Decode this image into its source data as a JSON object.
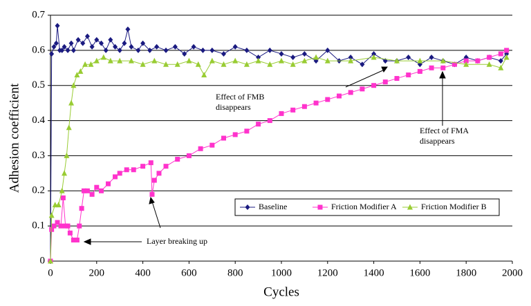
{
  "chart_data": {
    "type": "line",
    "xlabel": "Cycles",
    "ylabel": "Adhesion coefficient",
    "xlim": [
      0,
      2000
    ],
    "xticks": [
      0,
      200,
      400,
      600,
      800,
      1000,
      1200,
      1400,
      1600,
      1800,
      2000
    ],
    "ylim": [
      0,
      0.7
    ],
    "yticks": [
      0,
      0.1,
      0.2,
      0.3,
      0.4,
      0.5,
      0.6,
      0.7
    ],
    "grid": true,
    "legend": "lower right",
    "series": [
      {
        "name": "Baseline",
        "color": "#1a1a80",
        "marker": "diamond",
        "x": [
          0,
          5,
          15,
          25,
          30,
          40,
          50,
          60,
          75,
          90,
          100,
          120,
          140,
          160,
          180,
          200,
          220,
          240,
          260,
          280,
          300,
          320,
          335,
          350,
          380,
          400,
          430,
          460,
          500,
          540,
          580,
          620,
          660,
          700,
          750,
          800,
          850,
          900,
          950,
          1000,
          1050,
          1100,
          1150,
          1200,
          1250,
          1300,
          1350,
          1400,
          1450,
          1500,
          1550,
          1600,
          1650,
          1700,
          1750,
          1800,
          1850,
          1900,
          1950,
          1975
        ],
        "values": [
          0,
          0.59,
          0.61,
          0.62,
          0.67,
          0.6,
          0.6,
          0.61,
          0.6,
          0.62,
          0.6,
          0.63,
          0.62,
          0.64,
          0.61,
          0.63,
          0.62,
          0.6,
          0.63,
          0.61,
          0.6,
          0.62,
          0.66,
          0.61,
          0.6,
          0.62,
          0.6,
          0.61,
          0.6,
          0.61,
          0.59,
          0.61,
          0.6,
          0.6,
          0.59,
          0.61,
          0.6,
          0.58,
          0.6,
          0.59,
          0.58,
          0.59,
          0.57,
          0.6,
          0.57,
          0.58,
          0.56,
          0.59,
          0.57,
          0.57,
          0.58,
          0.56,
          0.58,
          0.57,
          0.56,
          0.58,
          0.57,
          0.58,
          0.57,
          0.59
        ]
      },
      {
        "name": "Friction Modifier A",
        "color": "#ff33cc",
        "marker": "square",
        "x": [
          0,
          5,
          15,
          30,
          45,
          55,
          65,
          75,
          85,
          100,
          115,
          125,
          135,
          145,
          160,
          180,
          200,
          220,
          250,
          280,
          300,
          330,
          360,
          400,
          435,
          440,
          450,
          470,
          500,
          550,
          600,
          650,
          700,
          750,
          800,
          850,
          900,
          950,
          1000,
          1050,
          1100,
          1150,
          1200,
          1250,
          1300,
          1350,
          1400,
          1450,
          1500,
          1550,
          1600,
          1650,
          1700,
          1750,
          1800,
          1850,
          1900,
          1950,
          1975
        ],
        "values": [
          0,
          0.09,
          0.1,
          0.11,
          0.1,
          0.18,
          0.1,
          0.1,
          0.08,
          0.06,
          0.06,
          0.1,
          0.15,
          0.2,
          0.2,
          0.19,
          0.21,
          0.2,
          0.22,
          0.24,
          0.25,
          0.26,
          0.26,
          0.27,
          0.28,
          0.19,
          0.23,
          0.25,
          0.27,
          0.29,
          0.3,
          0.32,
          0.33,
          0.35,
          0.36,
          0.37,
          0.39,
          0.4,
          0.42,
          0.43,
          0.44,
          0.45,
          0.46,
          0.47,
          0.48,
          0.49,
          0.5,
          0.51,
          0.52,
          0.53,
          0.54,
          0.55,
          0.55,
          0.56,
          0.57,
          0.57,
          0.58,
          0.59,
          0.6
        ]
      },
      {
        "name": "Friction Modifier B",
        "color": "#99cc33",
        "marker": "triangle",
        "x": [
          0,
          5,
          20,
          35,
          50,
          60,
          70,
          80,
          90,
          100,
          115,
          130,
          150,
          175,
          200,
          230,
          260,
          300,
          350,
          400,
          450,
          500,
          550,
          600,
          640,
          665,
          700,
          750,
          800,
          850,
          900,
          950,
          1000,
          1050,
          1100,
          1150,
          1200,
          1300,
          1400,
          1500,
          1600,
          1700,
          1800,
          1900,
          1950,
          1975
        ],
        "values": [
          0,
          0.13,
          0.16,
          0.16,
          0.2,
          0.25,
          0.3,
          0.38,
          0.45,
          0.5,
          0.53,
          0.54,
          0.56,
          0.56,
          0.57,
          0.58,
          0.57,
          0.57,
          0.57,
          0.56,
          0.57,
          0.56,
          0.56,
          0.57,
          0.56,
          0.53,
          0.57,
          0.56,
          0.57,
          0.56,
          0.57,
          0.56,
          0.57,
          0.56,
          0.57,
          0.58,
          0.57,
          0.57,
          0.58,
          0.57,
          0.57,
          0.57,
          0.56,
          0.56,
          0.55,
          0.58
        ]
      }
    ],
    "annotations": [
      {
        "text": [
          "Effect of FMB",
          "disappears"
        ]
      },
      {
        "text": [
          "Effect of FMA",
          "disappears"
        ]
      },
      {
        "text": [
          "Layer breaking up"
        ]
      }
    ]
  }
}
